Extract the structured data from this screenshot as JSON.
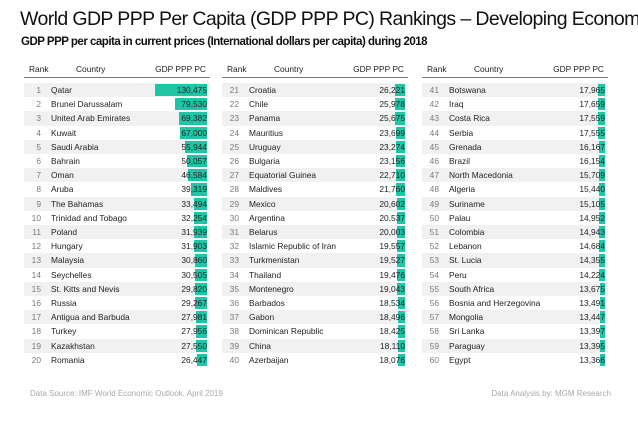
{
  "title": "World GDP PPP Per Capita (GDP PPP PC) Rankings – Developing Economies",
  "subtitle": "GDP PPP per capita in current prices (International dollars per capita) during 2018",
  "headers": {
    "rank": "Rank",
    "country": "Country",
    "gdp": "GDP PPP PC"
  },
  "footer": {
    "source": "Data Source: IMF World Economic Outlook, April 2019",
    "analysis": "Data Analysis by: MGM Research"
  },
  "colors": {
    "bar": "#1fc6a6",
    "stripe": "#f1f1f1"
  },
  "chart_data": {
    "type": "table",
    "bar_scale_max": 130475,
    "rows": [
      {
        "rank": "1",
        "country": "Qatar",
        "value": "130,475",
        "num": 130475
      },
      {
        "rank": "2",
        "country": "Brunei Darussalam",
        "value": "79,530",
        "num": 79530
      },
      {
        "rank": "3",
        "country": "United Arab Emirates",
        "value": "69,382",
        "num": 69382
      },
      {
        "rank": "4",
        "country": "Kuwait",
        "value": "67,000",
        "num": 67000
      },
      {
        "rank": "5",
        "country": "Saudi Arabia",
        "value": "55,944",
        "num": 55944
      },
      {
        "rank": "6",
        "country": "Bahrain",
        "value": "50,057",
        "num": 50057
      },
      {
        "rank": "7",
        "country": "Oman",
        "value": "46,584",
        "num": 46584
      },
      {
        "rank": "8",
        "country": "Aruba",
        "value": "39,319",
        "num": 39319
      },
      {
        "rank": "9",
        "country": "The Bahamas",
        "value": "33,494",
        "num": 33494
      },
      {
        "rank": "10",
        "country": "Trinidad and Tobago",
        "value": "32,254",
        "num": 32254
      },
      {
        "rank": "11",
        "country": "Poland",
        "value": "31,939",
        "num": 31939
      },
      {
        "rank": "12",
        "country": "Hungary",
        "value": "31,903",
        "num": 31903
      },
      {
        "rank": "13",
        "country": "Malaysia",
        "value": "30,860",
        "num": 30860
      },
      {
        "rank": "14",
        "country": "Seychelles",
        "value": "30,505",
        "num": 30505
      },
      {
        "rank": "15",
        "country": "St. Kitts and Nevis",
        "value": "29,820",
        "num": 29820
      },
      {
        "rank": "16",
        "country": "Russia",
        "value": "29,267",
        "num": 29267
      },
      {
        "rank": "17",
        "country": "Antigua and Barbuda",
        "value": "27,981",
        "num": 27981
      },
      {
        "rank": "18",
        "country": "Turkey",
        "value": "27,956",
        "num": 27956
      },
      {
        "rank": "19",
        "country": "Kazakhstan",
        "value": "27,550",
        "num": 27550
      },
      {
        "rank": "20",
        "country": "Romania",
        "value": "26,447",
        "num": 26447
      },
      {
        "rank": "21",
        "country": "Croatia",
        "value": "26,221",
        "num": 26221
      },
      {
        "rank": "22",
        "country": "Chile",
        "value": "25,978",
        "num": 25978
      },
      {
        "rank": "23",
        "country": "Panama",
        "value": "25,675",
        "num": 25675
      },
      {
        "rank": "24",
        "country": "Mauritius",
        "value": "23,699",
        "num": 23699
      },
      {
        "rank": "25",
        "country": "Uruguay",
        "value": "23,274",
        "num": 23274
      },
      {
        "rank": "26",
        "country": "Bulgaria",
        "value": "23,156",
        "num": 23156
      },
      {
        "rank": "27",
        "country": "Equatorial Guinea",
        "value": "22,710",
        "num": 22710
      },
      {
        "rank": "28",
        "country": "Maldives",
        "value": "21,760",
        "num": 21760
      },
      {
        "rank": "29",
        "country": "Mexico",
        "value": "20,602",
        "num": 20602
      },
      {
        "rank": "30",
        "country": "Argentina",
        "value": "20,537",
        "num": 20537
      },
      {
        "rank": "31",
        "country": "Belarus",
        "value": "20,003",
        "num": 20003
      },
      {
        "rank": "32",
        "country": "Islamic Republic of Iran",
        "value": "19,557",
        "num": 19557
      },
      {
        "rank": "33",
        "country": "Turkmenistan",
        "value": "19,527",
        "num": 19527
      },
      {
        "rank": "34",
        "country": "Thailand",
        "value": "19,476",
        "num": 19476
      },
      {
        "rank": "35",
        "country": "Montenegro",
        "value": "19,043",
        "num": 19043
      },
      {
        "rank": "36",
        "country": "Barbados",
        "value": "18,534",
        "num": 18534
      },
      {
        "rank": "37",
        "country": "Gabon",
        "value": "18,496",
        "num": 18496
      },
      {
        "rank": "38",
        "country": "Dominican Republic",
        "value": "18,425",
        "num": 18425
      },
      {
        "rank": "39",
        "country": "China",
        "value": "18,110",
        "num": 18110
      },
      {
        "rank": "40",
        "country": "Azerbaijan",
        "value": "18,076",
        "num": 18076
      },
      {
        "rank": "41",
        "country": "Botswana",
        "value": "17,965",
        "num": 17965
      },
      {
        "rank": "42",
        "country": "Iraq",
        "value": "17,659",
        "num": 17659
      },
      {
        "rank": "43",
        "country": "Costa Rica",
        "value": "17,559",
        "num": 17559
      },
      {
        "rank": "44",
        "country": "Serbia",
        "value": "17,555",
        "num": 17555
      },
      {
        "rank": "45",
        "country": "Grenada",
        "value": "16,167",
        "num": 16167
      },
      {
        "rank": "46",
        "country": "Brazil",
        "value": "16,154",
        "num": 16154
      },
      {
        "rank": "47",
        "country": "North Macedonia",
        "value": "15,709",
        "num": 15709
      },
      {
        "rank": "48",
        "country": "Algeria",
        "value": "15,440",
        "num": 15440
      },
      {
        "rank": "49",
        "country": "Suriname",
        "value": "15,105",
        "num": 15105
      },
      {
        "rank": "50",
        "country": "Palau",
        "value": "14,952",
        "num": 14952
      },
      {
        "rank": "51",
        "country": "Colombia",
        "value": "14,943",
        "num": 14943
      },
      {
        "rank": "52",
        "country": "Lebanon",
        "value": "14,684",
        "num": 14684
      },
      {
        "rank": "53",
        "country": "St. Lucia",
        "value": "14,355",
        "num": 14355
      },
      {
        "rank": "54",
        "country": "Peru",
        "value": "14,224",
        "num": 14224
      },
      {
        "rank": "55",
        "country": "South Africa",
        "value": "13,675",
        "num": 13675
      },
      {
        "rank": "56",
        "country": "Bosnia and Herzegovina",
        "value": "13,491",
        "num": 13491
      },
      {
        "rank": "57",
        "country": "Mongolia",
        "value": "13,447",
        "num": 13447
      },
      {
        "rank": "58",
        "country": "Sri Lanka",
        "value": "13,397",
        "num": 13397
      },
      {
        "rank": "59",
        "country": "Paraguay",
        "value": "13,395",
        "num": 13395
      },
      {
        "rank": "60",
        "country": "Egypt",
        "value": "13,366",
        "num": 13366
      }
    ]
  }
}
